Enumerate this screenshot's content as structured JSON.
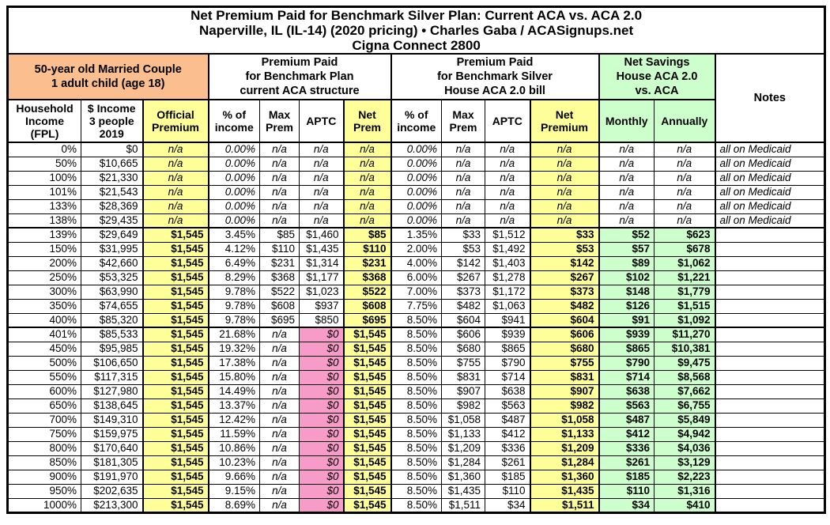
{
  "title": {
    "line1": "Net Premium Paid for Benchmark Silver Plan: Current ACA vs. ACA 2.0",
    "line2": "Naperville, IL (IL-14) (2020 pricing) • Charles Gaba / ACASignups.net",
    "line3": "Cigna Connect 2800"
  },
  "groups": {
    "demographic": "50-year old Married Couple\n1 adult child (age 18)",
    "current_aca": "Premium Paid\nfor Benchmark Plan\ncurrent ACA structure",
    "aca_2_0": "Premium Paid\nfor Benchmark Silver\nHouse ACA 2.0 bill",
    "net_savings": "Net Savings\nHouse ACA 2.0\nvs. ACA",
    "notes": "Notes"
  },
  "colors": {
    "orange_header": "#FBBF8F",
    "yellow_highlight": "#FFFF99",
    "green_highlight": "#CCFFCC",
    "pink_zero_aptc": "#F79BC8"
  },
  "chart_data": {
    "type": "table",
    "title": "Net Premium Paid for Benchmark Silver Plan: Current ACA vs. ACA 2.0 — Naperville, IL (IL-14) (2020 pricing) — Cigna Connect 2800",
    "columns": [
      {
        "key": "fpl",
        "label": "Household\nIncome\n(FPL)"
      },
      {
        "key": "income",
        "label": "$ Income\n3 people\n2019"
      },
      {
        "key": "official",
        "label": "Official\nPremium"
      },
      {
        "key": "aca_pct",
        "label": "% of\nincome"
      },
      {
        "key": "aca_max",
        "label": "Max\nPrem"
      },
      {
        "key": "aca_aptc",
        "label": "APTC"
      },
      {
        "key": "aca_net",
        "label": "Net\nPrem"
      },
      {
        "key": "aca2_pct",
        "label": "% of\nincome"
      },
      {
        "key": "aca2_max",
        "label": "Max\nPrem"
      },
      {
        "key": "aca2_aptc",
        "label": "APTC"
      },
      {
        "key": "aca2_net",
        "label": "Net\nPremium"
      },
      {
        "key": "monthly",
        "label": "Monthly"
      },
      {
        "key": "annually",
        "label": "Annually"
      },
      {
        "key": "notes",
        "label": "Notes"
      }
    ],
    "rows": [
      {
        "tier": "medicaid",
        "fpl": "0%",
        "income": "$0",
        "official": "n/a",
        "aca_pct": "0.00%",
        "aca_max": "n/a",
        "aca_aptc": "n/a",
        "aca_net": "n/a",
        "aca2_pct": "0.00%",
        "aca2_max": "n/a",
        "aca2_aptc": "n/a",
        "aca2_net": "n/a",
        "monthly": "n/a",
        "annually": "n/a",
        "notes": "all on Medicaid"
      },
      {
        "tier": "medicaid",
        "fpl": "50%",
        "income": "$10,665",
        "official": "n/a",
        "aca_pct": "0.00%",
        "aca_max": "n/a",
        "aca_aptc": "n/a",
        "aca_net": "n/a",
        "aca2_pct": "0.00%",
        "aca2_max": "n/a",
        "aca2_aptc": "n/a",
        "aca2_net": "n/a",
        "monthly": "n/a",
        "annually": "n/a",
        "notes": "all on Medicaid"
      },
      {
        "tier": "medicaid",
        "fpl": "100%",
        "income": "$21,330",
        "official": "n/a",
        "aca_pct": "0.00%",
        "aca_max": "n/a",
        "aca_aptc": "n/a",
        "aca_net": "n/a",
        "aca2_pct": "0.00%",
        "aca2_max": "n/a",
        "aca2_aptc": "n/a",
        "aca2_net": "n/a",
        "monthly": "n/a",
        "annually": "n/a",
        "notes": "all on Medicaid"
      },
      {
        "tier": "medicaid",
        "fpl": "101%",
        "income": "$21,543",
        "official": "n/a",
        "aca_pct": "0.00%",
        "aca_max": "n/a",
        "aca_aptc": "n/a",
        "aca_net": "n/a",
        "aca2_pct": "0.00%",
        "aca2_max": "n/a",
        "aca2_aptc": "n/a",
        "aca2_net": "n/a",
        "monthly": "n/a",
        "annually": "n/a",
        "notes": "all on Medicaid"
      },
      {
        "tier": "medicaid",
        "fpl": "133%",
        "income": "$28,369",
        "official": "n/a",
        "aca_pct": "0.00%",
        "aca_max": "n/a",
        "aca_aptc": "n/a",
        "aca_net": "n/a",
        "aca2_pct": "0.00%",
        "aca2_max": "n/a",
        "aca2_aptc": "n/a",
        "aca2_net": "n/a",
        "monthly": "n/a",
        "annually": "n/a",
        "notes": "all on Medicaid"
      },
      {
        "tier": "medicaid",
        "fpl": "138%",
        "income": "$29,435",
        "official": "n/a",
        "aca_pct": "0.00%",
        "aca_max": "n/a",
        "aca_aptc": "n/a",
        "aca_net": "n/a",
        "aca2_pct": "0.00%",
        "aca2_max": "n/a",
        "aca2_aptc": "n/a",
        "aca2_net": "n/a",
        "monthly": "n/a",
        "annually": "n/a",
        "notes": "all on Medicaid"
      },
      {
        "tier": "subsidy",
        "sep": true,
        "fpl": "139%",
        "income": "$29,649",
        "official": "$1,545",
        "aca_pct": "3.45%",
        "aca_max": "$85",
        "aca_aptc": "$1,460",
        "aca_net": "$85",
        "aca2_pct": "1.35%",
        "aca2_max": "$33",
        "aca2_aptc": "$1,512",
        "aca2_net": "$33",
        "monthly": "$52",
        "annually": "$623",
        "notes": ""
      },
      {
        "tier": "subsidy",
        "fpl": "150%",
        "income": "$31,995",
        "official": "$1,545",
        "aca_pct": "4.12%",
        "aca_max": "$110",
        "aca_aptc": "$1,435",
        "aca_net": "$110",
        "aca2_pct": "2.00%",
        "aca2_max": "$53",
        "aca2_aptc": "$1,492",
        "aca2_net": "$53",
        "monthly": "$57",
        "annually": "$678",
        "notes": ""
      },
      {
        "tier": "subsidy",
        "fpl": "200%",
        "income": "$42,660",
        "official": "$1,545",
        "aca_pct": "6.49%",
        "aca_max": "$231",
        "aca_aptc": "$1,314",
        "aca_net": "$231",
        "aca2_pct": "4.00%",
        "aca2_max": "$142",
        "aca2_aptc": "$1,403",
        "aca2_net": "$142",
        "monthly": "$89",
        "annually": "$1,062",
        "notes": ""
      },
      {
        "tier": "subsidy",
        "fpl": "250%",
        "income": "$53,325",
        "official": "$1,545",
        "aca_pct": "8.29%",
        "aca_max": "$368",
        "aca_aptc": "$1,177",
        "aca_net": "$368",
        "aca2_pct": "6.00%",
        "aca2_max": "$267",
        "aca2_aptc": "$1,278",
        "aca2_net": "$267",
        "monthly": "$102",
        "annually": "$1,221",
        "notes": ""
      },
      {
        "tier": "subsidy",
        "fpl": "300%",
        "income": "$63,990",
        "official": "$1,545",
        "aca_pct": "9.78%",
        "aca_max": "$522",
        "aca_aptc": "$1,023",
        "aca_net": "$522",
        "aca2_pct": "7.00%",
        "aca2_max": "$373",
        "aca2_aptc": "$1,172",
        "aca2_net": "$373",
        "monthly": "$148",
        "annually": "$1,779",
        "notes": ""
      },
      {
        "tier": "subsidy",
        "fpl": "350%",
        "income": "$74,655",
        "official": "$1,545",
        "aca_pct": "9.78%",
        "aca_max": "$608",
        "aca_aptc": "$937",
        "aca_net": "$608",
        "aca2_pct": "7.75%",
        "aca2_max": "$482",
        "aca2_aptc": "$1,063",
        "aca2_net": "$482",
        "monthly": "$126",
        "annually": "$1,515",
        "notes": ""
      },
      {
        "tier": "subsidy",
        "fpl": "400%",
        "income": "$85,320",
        "official": "$1,545",
        "aca_pct": "9.78%",
        "aca_max": "$695",
        "aca_aptc": "$850",
        "aca_net": "$695",
        "aca2_pct": "8.50%",
        "aca2_max": "$604",
        "aca2_aptc": "$941",
        "aca2_net": "$604",
        "monthly": "$91",
        "annually": "$1,092",
        "notes": ""
      },
      {
        "tier": "over400",
        "sep": true,
        "fpl": "401%",
        "income": "$85,533",
        "official": "$1,545",
        "aca_pct": "21.68%",
        "aca_max": "n/a",
        "aca_aptc": "$0",
        "aca_net": "$1,545",
        "aca2_pct": "8.50%",
        "aca2_max": "$606",
        "aca2_aptc": "$939",
        "aca2_net": "$606",
        "monthly": "$939",
        "annually": "$11,270",
        "notes": ""
      },
      {
        "tier": "over400",
        "fpl": "450%",
        "income": "$95,985",
        "official": "$1,545",
        "aca_pct": "19.32%",
        "aca_max": "n/a",
        "aca_aptc": "$0",
        "aca_net": "$1,545",
        "aca2_pct": "8.50%",
        "aca2_max": "$680",
        "aca2_aptc": "$865",
        "aca2_net": "$680",
        "monthly": "$865",
        "annually": "$10,381",
        "notes": ""
      },
      {
        "tier": "over400",
        "fpl": "500%",
        "income": "$106,650",
        "official": "$1,545",
        "aca_pct": "17.38%",
        "aca_max": "n/a",
        "aca_aptc": "$0",
        "aca_net": "$1,545",
        "aca2_pct": "8.50%",
        "aca2_max": "$755",
        "aca2_aptc": "$790",
        "aca2_net": "$755",
        "monthly": "$790",
        "annually": "$9,475",
        "notes": ""
      },
      {
        "tier": "over400",
        "fpl": "550%",
        "income": "$117,315",
        "official": "$1,545",
        "aca_pct": "15.80%",
        "aca_max": "n/a",
        "aca_aptc": "$0",
        "aca_net": "$1,545",
        "aca2_pct": "8.50%",
        "aca2_max": "$831",
        "aca2_aptc": "$714",
        "aca2_net": "$831",
        "monthly": "$714",
        "annually": "$8,568",
        "notes": ""
      },
      {
        "tier": "over400",
        "fpl": "600%",
        "income": "$127,980",
        "official": "$1,545",
        "aca_pct": "14.49%",
        "aca_max": "n/a",
        "aca_aptc": "$0",
        "aca_net": "$1,545",
        "aca2_pct": "8.50%",
        "aca2_max": "$907",
        "aca2_aptc": "$638",
        "aca2_net": "$907",
        "monthly": "$638",
        "annually": "$7,662",
        "notes": ""
      },
      {
        "tier": "over400",
        "fpl": "650%",
        "income": "$138,645",
        "official": "$1,545",
        "aca_pct": "13.37%",
        "aca_max": "n/a",
        "aca_aptc": "$0",
        "aca_net": "$1,545",
        "aca2_pct": "8.50%",
        "aca2_max": "$982",
        "aca2_aptc": "$563",
        "aca2_net": "$982",
        "monthly": "$563",
        "annually": "$6,755",
        "notes": ""
      },
      {
        "tier": "over400",
        "fpl": "700%",
        "income": "$149,310",
        "official": "$1,545",
        "aca_pct": "12.42%",
        "aca_max": "n/a",
        "aca_aptc": "$0",
        "aca_net": "$1,545",
        "aca2_pct": "8.50%",
        "aca2_max": "$1,058",
        "aca2_aptc": "$487",
        "aca2_net": "$1,058",
        "monthly": "$487",
        "annually": "$5,849",
        "notes": ""
      },
      {
        "tier": "over400",
        "fpl": "750%",
        "income": "$159,975",
        "official": "$1,545",
        "aca_pct": "11.59%",
        "aca_max": "n/a",
        "aca_aptc": "$0",
        "aca_net": "$1,545",
        "aca2_pct": "8.50%",
        "aca2_max": "$1,133",
        "aca2_aptc": "$412",
        "aca2_net": "$1,133",
        "monthly": "$412",
        "annually": "$4,942",
        "notes": ""
      },
      {
        "tier": "over400",
        "fpl": "800%",
        "income": "$170,640",
        "official": "$1,545",
        "aca_pct": "10.86%",
        "aca_max": "n/a",
        "aca_aptc": "$0",
        "aca_net": "$1,545",
        "aca2_pct": "8.50%",
        "aca2_max": "$1,209",
        "aca2_aptc": "$336",
        "aca2_net": "$1,209",
        "monthly": "$336",
        "annually": "$4,036",
        "notes": ""
      },
      {
        "tier": "over400",
        "fpl": "850%",
        "income": "$181,305",
        "official": "$1,545",
        "aca_pct": "10.23%",
        "aca_max": "n/a",
        "aca_aptc": "$0",
        "aca_net": "$1,545",
        "aca2_pct": "8.50%",
        "aca2_max": "$1,284",
        "aca2_aptc": "$261",
        "aca2_net": "$1,284",
        "monthly": "$261",
        "annually": "$3,129",
        "notes": ""
      },
      {
        "tier": "over400",
        "fpl": "900%",
        "income": "$191,970",
        "official": "$1,545",
        "aca_pct": "9.66%",
        "aca_max": "n/a",
        "aca_aptc": "$0",
        "aca_net": "$1,545",
        "aca2_pct": "8.50%",
        "aca2_max": "$1,360",
        "aca2_aptc": "$185",
        "aca2_net": "$1,360",
        "monthly": "$185",
        "annually": "$2,223",
        "notes": ""
      },
      {
        "tier": "over400",
        "fpl": "950%",
        "income": "$202,635",
        "official": "$1,545",
        "aca_pct": "9.15%",
        "aca_max": "n/a",
        "aca_aptc": "$0",
        "aca_net": "$1,545",
        "aca2_pct": "8.50%",
        "aca2_max": "$1,435",
        "aca2_aptc": "$110",
        "aca2_net": "$1,435",
        "monthly": "$110",
        "annually": "$1,316",
        "notes": ""
      },
      {
        "tier": "over400",
        "fpl": "1000%",
        "income": "$213,300",
        "official": "$1,545",
        "aca_pct": "8.69%",
        "aca_max": "n/a",
        "aca_aptc": "$0",
        "aca_net": "$1,545",
        "aca2_pct": "8.50%",
        "aca2_max": "$1,511",
        "aca2_aptc": "$34",
        "aca2_net": "$1,511",
        "monthly": "$34",
        "annually": "$410",
        "notes": ""
      }
    ]
  }
}
